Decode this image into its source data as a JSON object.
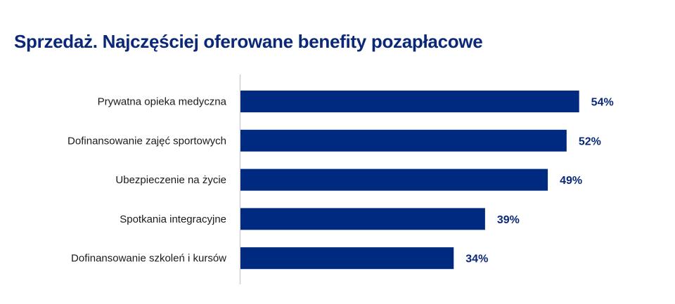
{
  "chart_data": {
    "type": "bar",
    "orientation": "horizontal",
    "title": "Sprzedaż. Najczęściej oferowane benefity pozapłacowe",
    "categories": [
      "Prywatna opieka medyczna",
      "Dofinansowanie zajęć sportowych",
      "Ubezpieczenie na życie",
      "Spotkania integracyjne",
      "Dofinansowanie szkoleń i kursów"
    ],
    "values": [
      54,
      52,
      49,
      39,
      34
    ],
    "data_labels": [
      "54%",
      "52%",
      "49%",
      "39%",
      "34%"
    ],
    "unit": "%",
    "xlim": [
      0,
      100
    ],
    "grid": false,
    "legend": "none",
    "colors": {
      "bar": "#002a7f",
      "title": "#0a2877",
      "axis": "#d0d0d0"
    }
  }
}
